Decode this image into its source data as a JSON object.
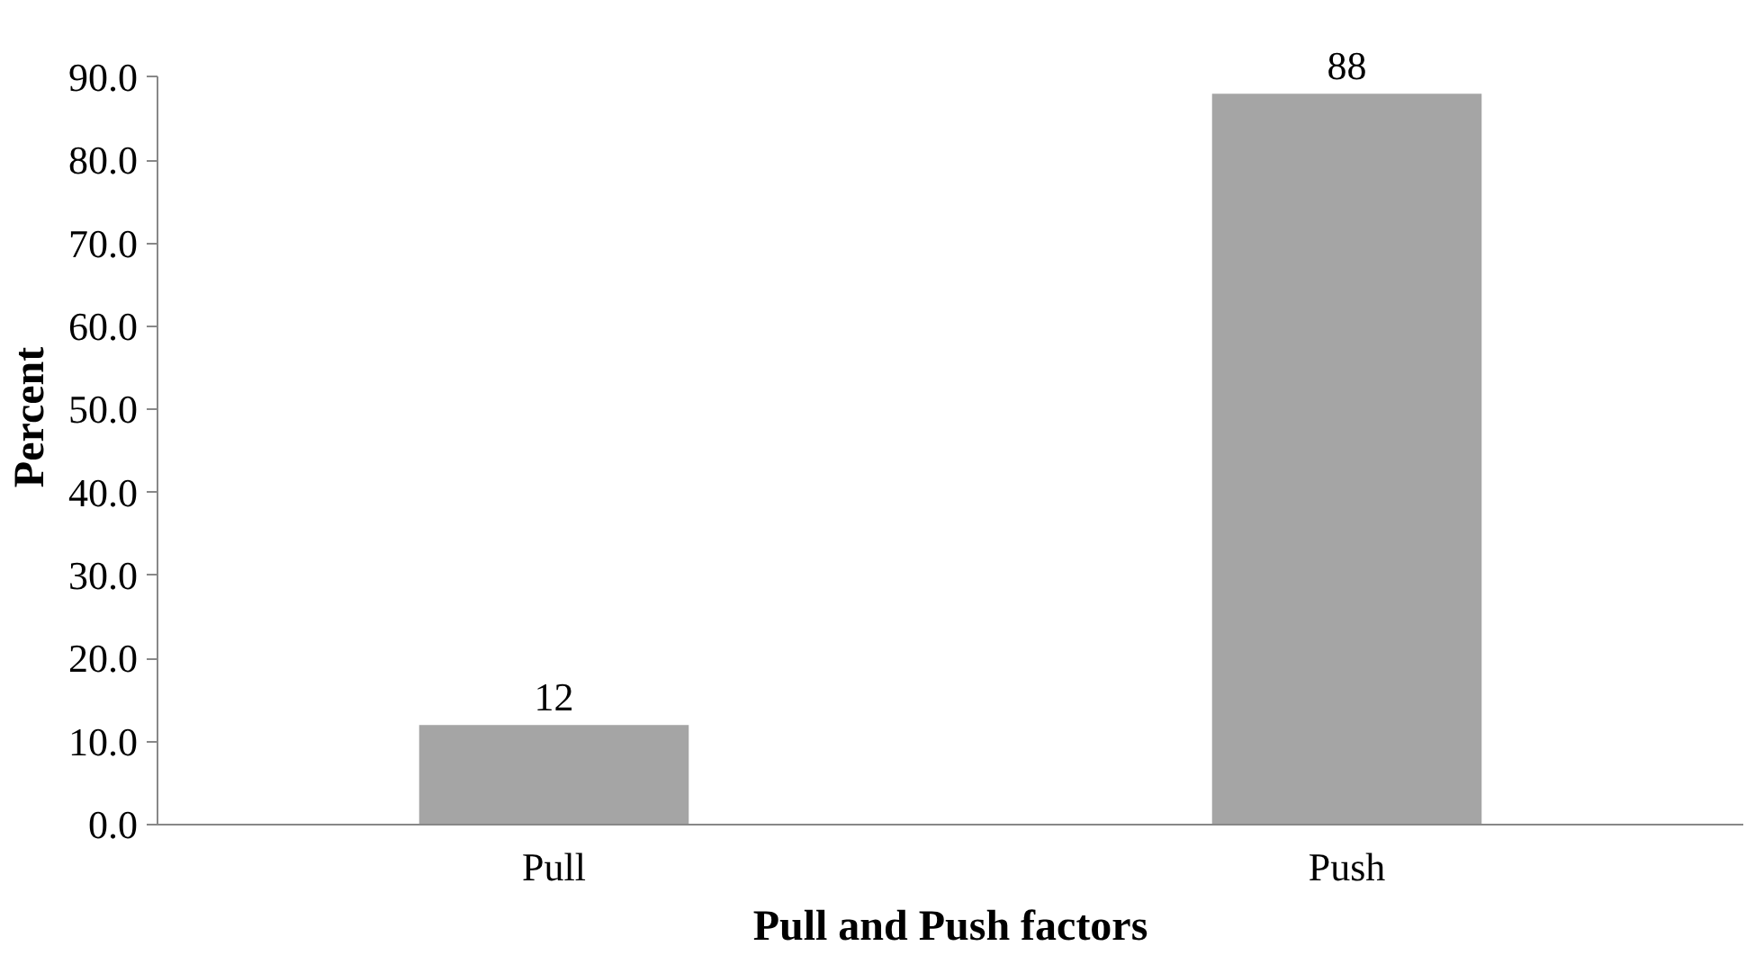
{
  "chart_data": {
    "type": "bar",
    "xlabel": "Pull and Push factors",
    "ylabel": "Percent",
    "categories": [
      "Pull",
      "Push"
    ],
    "values": [
      12,
      88
    ],
    "color": "#a5a5a5",
    "data_labels": true,
    "ylim": [
      0,
      90
    ],
    "yticks": [
      {
        "value": 0,
        "label": "0.0"
      },
      {
        "value": 10,
        "label": "10.0"
      },
      {
        "value": 20,
        "label": "20.0"
      },
      {
        "value": 30,
        "label": "30.0"
      },
      {
        "value": 40,
        "label": "40.0"
      },
      {
        "value": 50,
        "label": "50.0"
      },
      {
        "value": 60,
        "label": "60.0"
      },
      {
        "value": 70,
        "label": "70.0"
      },
      {
        "value": 80,
        "label": "80.0"
      },
      {
        "value": 90,
        "label": "90.0"
      }
    ],
    "grid": false
  }
}
